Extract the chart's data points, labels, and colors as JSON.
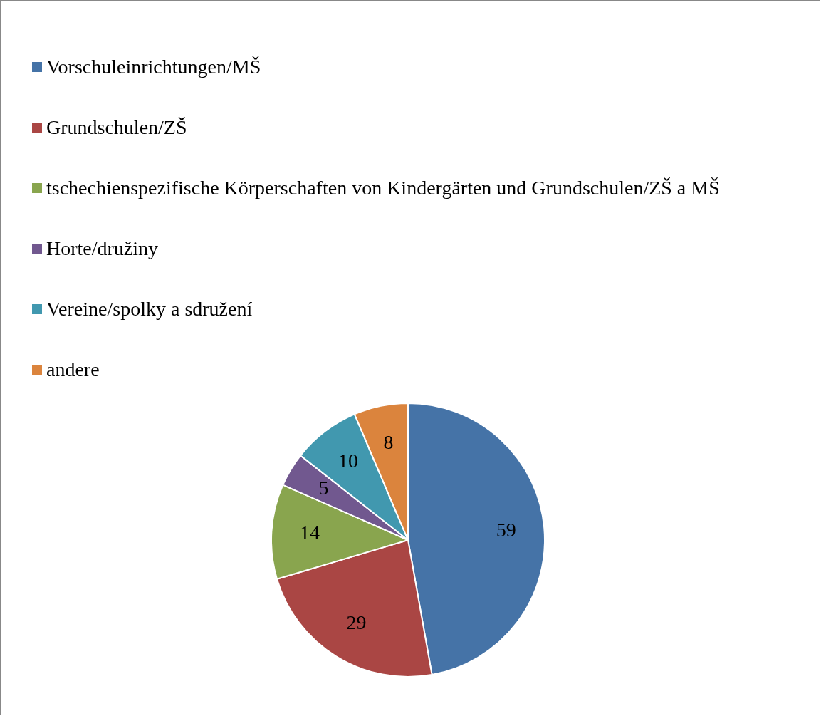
{
  "chart_data": {
    "type": "pie",
    "categories": [
      "Vorschuleinrichtungen/MŠ",
      "Grundschulen/ZŠ",
      "tschechienspezifische Körperschaften von Kindergärten und Grundschulen/ZŠ a MŠ",
      "Horte/družiny",
      "Vereine/spolky a sdružení",
      "andere"
    ],
    "values": [
      59,
      29,
      14,
      5,
      10,
      8
    ],
    "colors": [
      "#4573a7",
      "#aa4644",
      "#89a54e",
      "#71588f",
      "#4198af",
      "#db843d"
    ],
    "data_labels": true,
    "legend": "top left"
  }
}
